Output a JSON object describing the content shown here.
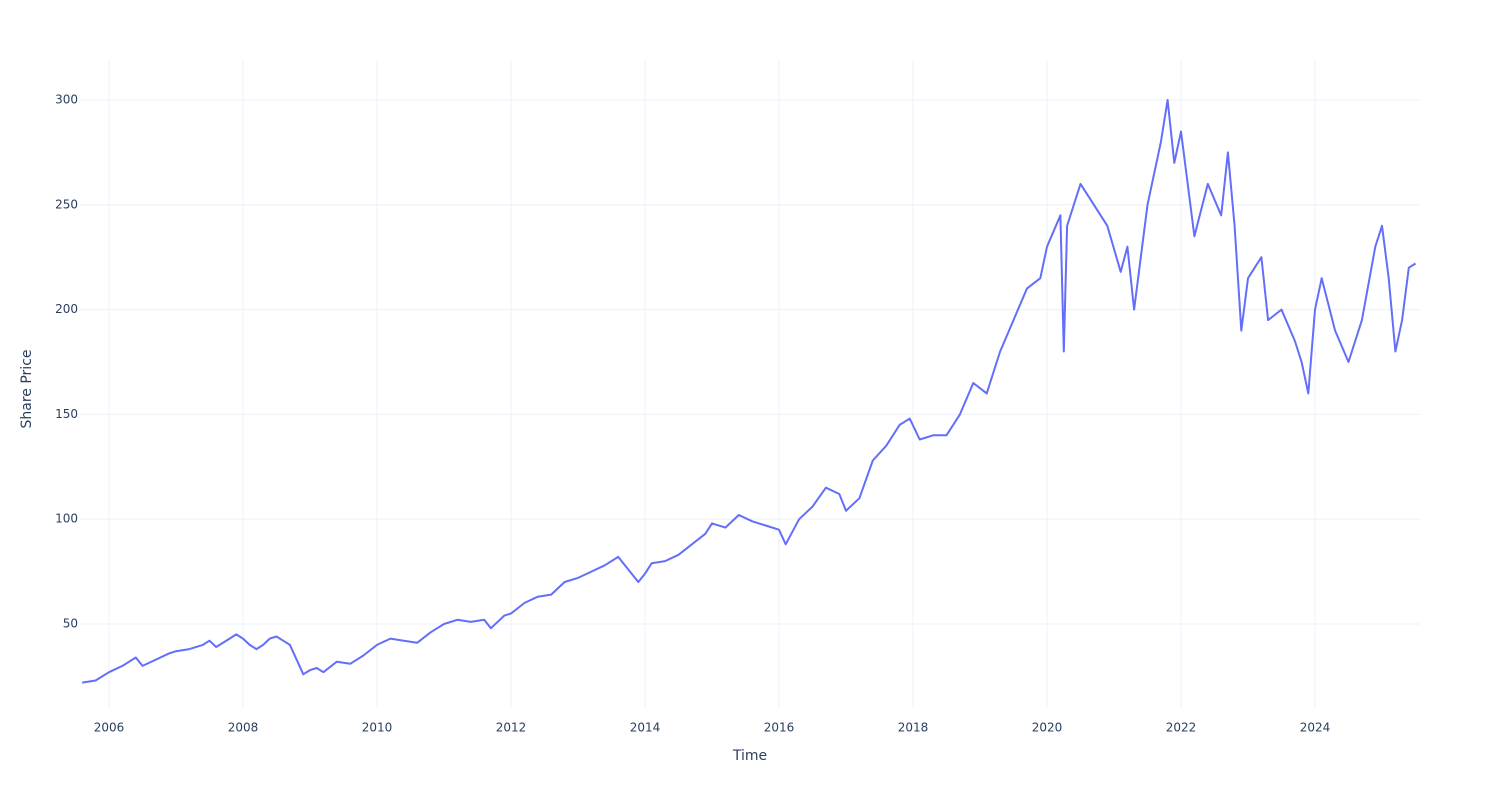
{
  "chart_data": {
    "type": "line",
    "x_label": "Time",
    "y_label": "Share Price",
    "x": [
      2005.6,
      2005.8,
      2006.0,
      2006.2,
      2006.3,
      2006.4,
      2006.5,
      2006.7,
      2006.9,
      2007.0,
      2007.2,
      2007.4,
      2007.5,
      2007.6,
      2007.8,
      2007.9,
      2008.0,
      2008.1,
      2008.2,
      2008.3,
      2008.4,
      2008.5,
      2008.6,
      2008.7,
      2008.8,
      2008.9,
      2009.0,
      2009.1,
      2009.2,
      2009.4,
      2009.6,
      2009.8,
      2010.0,
      2010.2,
      2010.4,
      2010.6,
      2010.8,
      2011.0,
      2011.2,
      2011.4,
      2011.6,
      2011.7,
      2011.9,
      2012.0,
      2012.2,
      2012.4,
      2012.6,
      2012.8,
      2013.0,
      2013.2,
      2013.4,
      2013.6,
      2013.7,
      2013.9,
      2014.0,
      2014.1,
      2014.3,
      2014.5,
      2014.7,
      2014.9,
      2015.0,
      2015.2,
      2015.4,
      2015.6,
      2015.8,
      2016.0,
      2016.1,
      2016.3,
      2016.5,
      2016.7,
      2016.9,
      2017.0,
      2017.2,
      2017.4,
      2017.6,
      2017.8,
      2017.95,
      2018.1,
      2018.3,
      2018.5,
      2018.7,
      2018.9,
      2019.1,
      2019.3,
      2019.5,
      2019.7,
      2019.9,
      2020.0,
      2020.2,
      2020.25,
      2020.3,
      2020.5,
      2020.7,
      2020.9,
      2021.1,
      2021.2,
      2021.3,
      2021.5,
      2021.7,
      2021.8,
      2021.9,
      2022.0,
      2022.2,
      2022.4,
      2022.6,
      2022.7,
      2022.8,
      2022.9,
      2023.0,
      2023.2,
      2023.3,
      2023.5,
      2023.7,
      2023.8,
      2023.9,
      2024.0,
      2024.1,
      2024.3,
      2024.5,
      2024.7,
      2024.9,
      2025.0,
      2025.1,
      2025.2,
      2025.3,
      2025.4,
      2025.5
    ],
    "series": [
      {
        "color": "#636efa",
        "values": [
          22,
          23,
          27,
          30,
          32,
          34,
          30,
          33,
          36,
          37,
          38,
          40,
          42,
          39,
          43,
          45,
          43,
          40,
          38,
          40,
          43,
          44,
          42,
          40,
          33,
          26,
          28,
          29,
          27,
          32,
          31,
          35,
          40,
          43,
          42,
          41,
          46,
          50,
          52,
          51,
          52,
          48,
          54,
          55,
          60,
          63,
          64,
          70,
          72,
          75,
          78,
          82,
          78,
          70,
          74,
          79,
          80,
          83,
          88,
          93,
          98,
          96,
          102,
          99,
          97,
          95,
          88,
          100,
          106,
          115,
          112,
          104,
          110,
          128,
          135,
          145,
          148,
          138,
          140,
          140,
          150,
          165,
          160,
          180,
          195,
          210,
          215,
          230,
          245,
          180,
          240,
          260,
          250,
          240,
          218,
          230,
          200,
          250,
          280,
          300,
          270,
          285,
          235,
          260,
          245,
          275,
          240,
          190,
          215,
          225,
          195,
          200,
          185,
          175,
          160,
          200,
          215,
          190,
          175,
          195,
          230,
          240,
          215,
          180,
          195,
          220,
          222
        ]
      }
    ],
    "xlim": [
      2005.567,
      2025.567
    ],
    "ylim": [
      9.9,
      319.1
    ],
    "xticks": [
      2006,
      2008,
      2010,
      2012,
      2014,
      2016,
      2018,
      2020,
      2022,
      2024
    ],
    "yticks": [
      50,
      100,
      150,
      200,
      250,
      300
    ],
    "grid": true
  }
}
